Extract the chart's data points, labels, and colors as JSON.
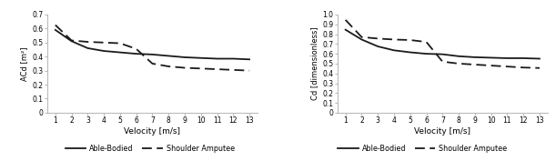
{
  "velocity": [
    1,
    2,
    3,
    4,
    5,
    6,
    7,
    8,
    9,
    10,
    11,
    12,
    13
  ],
  "ACd_able": [
    0.59,
    0.51,
    0.46,
    0.44,
    0.43,
    0.42,
    0.415,
    0.405,
    0.395,
    0.39,
    0.385,
    0.385,
    0.38
  ],
  "ACd_amputee": [
    0.625,
    0.515,
    0.505,
    0.5,
    0.495,
    0.455,
    0.35,
    0.33,
    0.32,
    0.315,
    0.31,
    0.305,
    0.3
  ],
  "Cd_able": [
    0.845,
    0.745,
    0.675,
    0.635,
    0.615,
    0.6,
    0.595,
    0.575,
    0.565,
    0.56,
    0.555,
    0.555,
    0.55
  ],
  "Cd_amputee": [
    0.945,
    0.77,
    0.755,
    0.745,
    0.74,
    0.72,
    0.52,
    0.5,
    0.49,
    0.48,
    0.47,
    0.46,
    0.455
  ],
  "line_color": "#1a1a1a",
  "ylabel_left": "ACd [m²]",
  "ylabel_right": "Cd [dimensionless]",
  "xlabel": "Velocity [m/s]",
  "ylim_left": [
    0,
    0.7
  ],
  "ylim_right": [
    0,
    1.0
  ],
  "yticks_left": [
    0,
    0.1,
    0.2,
    0.3,
    0.4,
    0.5,
    0.6,
    0.7
  ],
  "yticks_right": [
    0,
    0.1,
    0.2,
    0.3,
    0.4,
    0.5,
    0.6,
    0.7,
    0.8,
    0.9,
    1.0
  ],
  "legend_able": "Able-Bodied",
  "legend_amputee": "Shoulder Amputee",
  "background_color": "#ffffff",
  "grid_color": "#bbbbbb",
  "figsize": [
    6.11,
    1.77
  ],
  "dpi": 100
}
